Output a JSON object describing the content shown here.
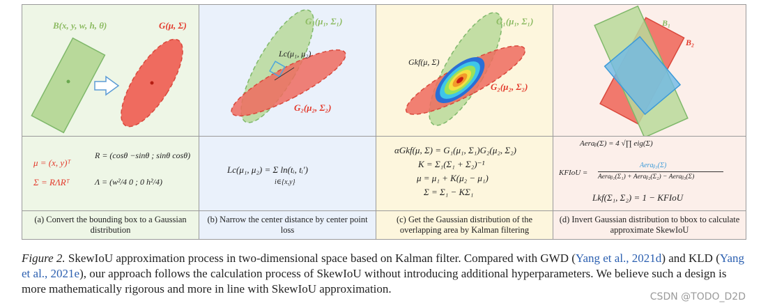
{
  "panels": [
    {
      "caption": "(a) Convert the bounding box to a Gaussian distribution",
      "labels": {
        "box": "B(x, y, w, h, θ)",
        "gauss": "G(μ, Σ)"
      },
      "eq": [
        "μ = (x, y)ᵀ",
        "R = (cosθ −sinθ ; sinθ cosθ)",
        "Σ = RΛRᵀ",
        "Λ = (w²/4 0 ; 0 h²/4)"
      ]
    },
    {
      "caption": "(b) Narrow the center distance by center point loss",
      "labels": {
        "g1": "G₁(μ₁, Σ₁)",
        "lc": "Lc(μ₁, μ₂)",
        "g2": "G₂(μ₂, Σ₂)"
      },
      "eq": [
        "Lc(μ₁, μ₂) = Σ ln(tᵢ, tᵢ′)",
        "i∈{x,y}"
      ]
    },
    {
      "caption": "(c) Get the Gaussian distribution of the overlapping area by Kalman filtering",
      "labels": {
        "g1": "G₁(μ₁, Σ₁)",
        "gkf": "Gkf(μ, Σ)",
        "g2": "G₂(μ₂, Σ₂)"
      },
      "eq": [
        "αGkf(μ, Σ) = G₁(μ₁, Σ₁)G₂(μ₂, Σ₂)",
        "K = Σ₁(Σ₁ + Σ₂)⁻¹",
        "μ = μ₁ + K(μ₂ − μ₁)",
        "Σ = Σ₁ − KΣ₁"
      ]
    },
    {
      "caption": "(d) Invert Gaussian distribution to bbox to calculate approximate SkewIoU",
      "labels": {
        "b1": "B₁",
        "b2": "B₂"
      },
      "eq": [
        "Aeraᵦ(Σ) = 4 √∏ eig(Σ)",
        "KFIoU =",
        "Aeraᵦ₃(Σ)",
        "Aeraᵦ₁(Σ₁) + Aeraᵦ₂(Σ₂) − Aeraᵦ₃(Σ)",
        "Lkf(Σ₁, Σ₂) = 1 − KFIoU"
      ]
    }
  ],
  "caption": {
    "fig": "Figure 2.",
    "text1": " SkewIoU approximation process in two-dimensional space based on Kalman filter. Compared with GWD (",
    "cite1": "Yang et al., 2021d",
    "text2": ") and KLD (",
    "cite2": "Yang et al., 2021e",
    "text3": "), our approach follows the calculation process of SkewIoU without introducing additional hyperparameters. We believe such a design is more mathematically rigorous and more in line with SkewIoU approximation."
  },
  "watermark": "CSDN @TODO_D2D",
  "colors": {
    "green": "#a8d08d",
    "red": "#e8574c",
    "blue": "#4ea6dc"
  }
}
